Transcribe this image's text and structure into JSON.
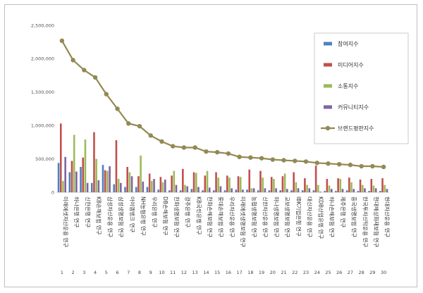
{
  "chart_data": {
    "type": "bar",
    "ylim": [
      0,
      2500000
    ],
    "yticks": [
      0,
      500000,
      1000000,
      1500000,
      2000000,
      2500000
    ],
    "ytick_labels": [
      "0",
      "500,000",
      "1,000,000",
      "1,500,000",
      "2,000,000",
      "2,500,000"
    ],
    "grid": false,
    "legend_position": "right",
    "numbers": [
      "1",
      "2",
      "3",
      "4",
      "5",
      "6",
      "7",
      "8",
      "9",
      "10",
      "11",
      "12",
      "13",
      "14",
      "15",
      "16",
      "17",
      "18",
      "19",
      "20",
      "21",
      "22",
      "23",
      "24",
      "25",
      "26",
      "27",
      "28",
      "29",
      "30"
    ],
    "categories": [
      "미래에셋자산운용 연구",
      "하나은행 연구",
      "신한은행 연구",
      "KB손해보험 연구",
      "삼성자산운용 연구",
      "삼성생명보험 연구",
      "아이엠뱅크 연구",
      "NH농협은행 연구",
      "우리은행 연구",
      "DB손해보험 연구",
      "한화생명보험 연구",
      "광주은행 연구",
      "KB국민은행 연구",
      "한화손해보험 연구",
      "롯데손해보험 연구",
      "우리자산운용 연구",
      "미래에셋생명보험 연구",
      "농협생명보험 연구",
      "신한자산운용 연구",
      "하나생명보험 연구",
      "교보생명보험 연구",
      "IBK기업은행 연구",
      "대신자산운용 연구",
      "KDB산업은행 연구",
      "하나손해보험 연구",
      "제주은행 연구",
      "흥국생명보험 연구",
      "한국투자신탁운용 연구",
      "현대해상화재보험 연구",
      "현대자산운용 연구"
    ],
    "series": [
      {
        "name": "참여지수",
        "kind": "bar",
        "color": "#4f81bd",
        "values": [
          440000,
          300000,
          380000,
          140000,
          410000,
          120000,
          80000,
          80000,
          80000,
          40000,
          30000,
          30000,
          50000,
          30000,
          30000,
          30000,
          40000,
          40000,
          30000,
          30000,
          30000,
          30000,
          30000,
          30000,
          20000,
          20000,
          30000,
          20000,
          20000,
          20000
        ]
      },
      {
        "name": "미디어지수",
        "kind": "bar",
        "color": "#c0504d",
        "values": [
          1030000,
          470000,
          520000,
          900000,
          330000,
          780000,
          380000,
          240000,
          280000,
          230000,
          250000,
          350000,
          300000,
          250000,
          300000,
          250000,
          240000,
          340000,
          320000,
          230000,
          240000,
          300000,
          210000,
          400000,
          200000,
          210000,
          220000,
          190000,
          200000,
          210000
        ]
      },
      {
        "name": "소통지수",
        "kind": "bar",
        "color": "#9bbb59",
        "values": [
          170000,
          860000,
          790000,
          500000,
          320000,
          200000,
          300000,
          550000,
          170000,
          150000,
          320000,
          110000,
          290000,
          320000,
          220000,
          220000,
          230000,
          60000,
          220000,
          200000,
          280000,
          150000,
          110000,
          110000,
          100000,
          200000,
          150000,
          110000,
          100000,
          110000
        ]
      },
      {
        "name": "커뮤니티지수",
        "kind": "bar",
        "color": "#8064a2",
        "values": [
          530000,
          310000,
          140000,
          180000,
          390000,
          140000,
          240000,
          160000,
          200000,
          190000,
          110000,
          90000,
          80000,
          70000,
          90000,
          60000,
          40000,
          60000,
          60000,
          60000,
          50000,
          60000,
          60000,
          10000,
          50000,
          50000,
          50000,
          60000,
          60000,
          50000
        ]
      },
      {
        "name": "브랜드평판지수",
        "kind": "line",
        "color": "#938953",
        "values": [
          2270000,
          1980000,
          1830000,
          1720000,
          1470000,
          1250000,
          1030000,
          990000,
          850000,
          760000,
          690000,
          670000,
          670000,
          610000,
          600000,
          580000,
          530000,
          520000,
          510000,
          490000,
          480000,
          470000,
          460000,
          440000,
          430000,
          420000,
          410000,
          390000,
          390000,
          380000
        ]
      }
    ]
  }
}
